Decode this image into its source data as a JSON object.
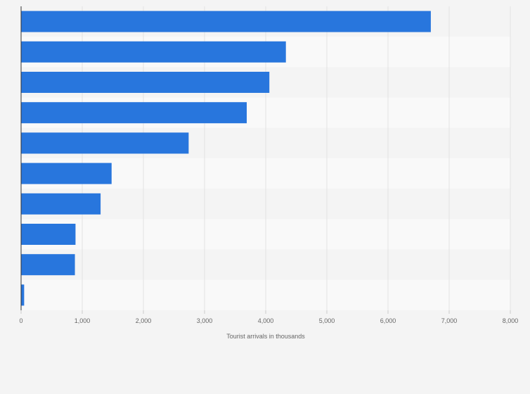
{
  "chart_data": {
    "type": "bar",
    "orientation": "horizontal",
    "categories": [
      "",
      "",
      "",
      "",
      "",
      "",
      "",
      "",
      "",
      ""
    ],
    "values": [
      6700,
      4330,
      4060,
      3690,
      2740,
      1480,
      1300,
      890,
      880,
      50
    ],
    "xlabel": "Tourist arrivals in thousands",
    "ylabel": "",
    "xlim": [
      0,
      8000
    ],
    "xticks": [
      0,
      1000,
      2000,
      3000,
      4000,
      5000,
      6000,
      7000,
      8000
    ],
    "xtick_labels": [
      "0",
      "1,000",
      "2,000",
      "3,000",
      "4,000",
      "5,000",
      "6,000",
      "7,000",
      "8,000"
    ],
    "grid": true,
    "colors": {
      "bar": "#2876dd",
      "band_light": "#f9f9f9",
      "band_dark": "#f4f4f4",
      "grid": "#e2e2e2",
      "axis": "#333333"
    }
  }
}
